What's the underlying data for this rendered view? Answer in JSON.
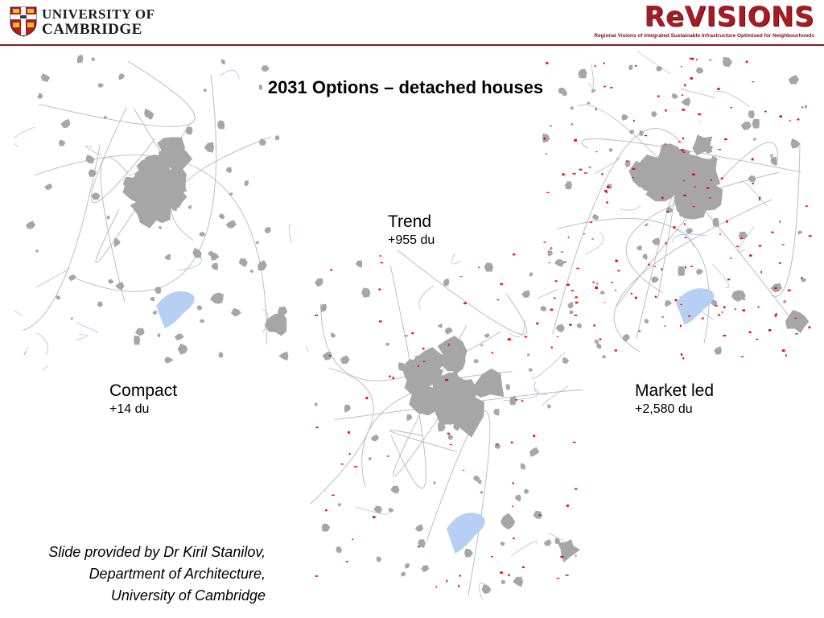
{
  "header": {
    "university_line1": "UNIVERSITY OF",
    "university_line2": "CAMBRIDGE",
    "revisions_logo": "ReVISIONS",
    "revisions_subtitle": "Regional Visions of Integrated Sustainable Infrastructure Optimised for Neighbourhoods",
    "accent_color": "#a51d24"
  },
  "title": "2031 Options – detached houses",
  "options": {
    "compact": {
      "name": "Compact",
      "value": "+14 du"
    },
    "trend": {
      "name": "Trend",
      "value": "+955 du"
    },
    "market": {
      "name": "Market led",
      "value": "+2,580 du"
    }
  },
  "credit": {
    "line1": "Slide provided by Dr Kiril Stanilov,",
    "line2": "Department of Architecture,",
    "line3": "University of Cambridge"
  },
  "map_colors": {
    "urban": "#a6a6a6",
    "water": "#b7cff2",
    "roads": "#bdbdbd",
    "rivers": "#9db8e6",
    "new_development": "#e01010"
  }
}
